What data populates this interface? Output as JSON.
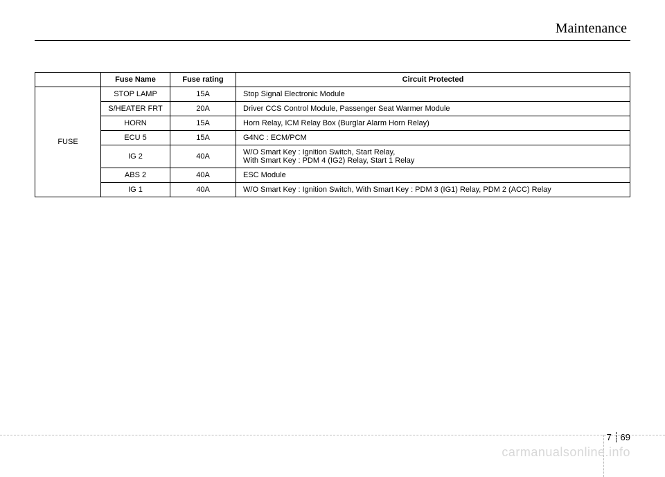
{
  "section_title": "Maintenance",
  "table": {
    "headers": {
      "group": "",
      "name": "Fuse Name",
      "rating": "Fuse rating",
      "circuit": "Circuit Protected"
    },
    "group_label": "FUSE",
    "rows": [
      {
        "name": "STOP LAMP",
        "rating": "15A",
        "circuit": "Stop Signal Electronic Module"
      },
      {
        "name": "S/HEATER FRT",
        "rating": "20A",
        "circuit": "Driver CCS Control Module, Passenger Seat Warmer Module"
      },
      {
        "name": "HORN",
        "rating": "15A",
        "circuit": "Horn Relay, ICM Relay Box (Burglar Alarm Horn Relay)"
      },
      {
        "name": "ECU 5",
        "rating": "15A",
        "circuit": "G4NC : ECM/PCM"
      },
      {
        "name": "IG 2",
        "rating": "40A",
        "circuit": "W/O Smart Key : Ignition Switch, Start Relay,\nWith Smart Key : PDM 4 (IG2) Relay, Start 1 Relay"
      },
      {
        "name": "ABS 2",
        "rating": "40A",
        "circuit": "ESC Module"
      },
      {
        "name": "IG 1",
        "rating": "40A",
        "circuit": "W/O Smart Key : Ignition Switch, With Smart Key : PDM 3 (IG1) Relay, PDM 2 (ACC) Relay"
      }
    ]
  },
  "footer": {
    "chapter": "7",
    "page": "69"
  },
  "watermark": "carmanualsonline.info"
}
